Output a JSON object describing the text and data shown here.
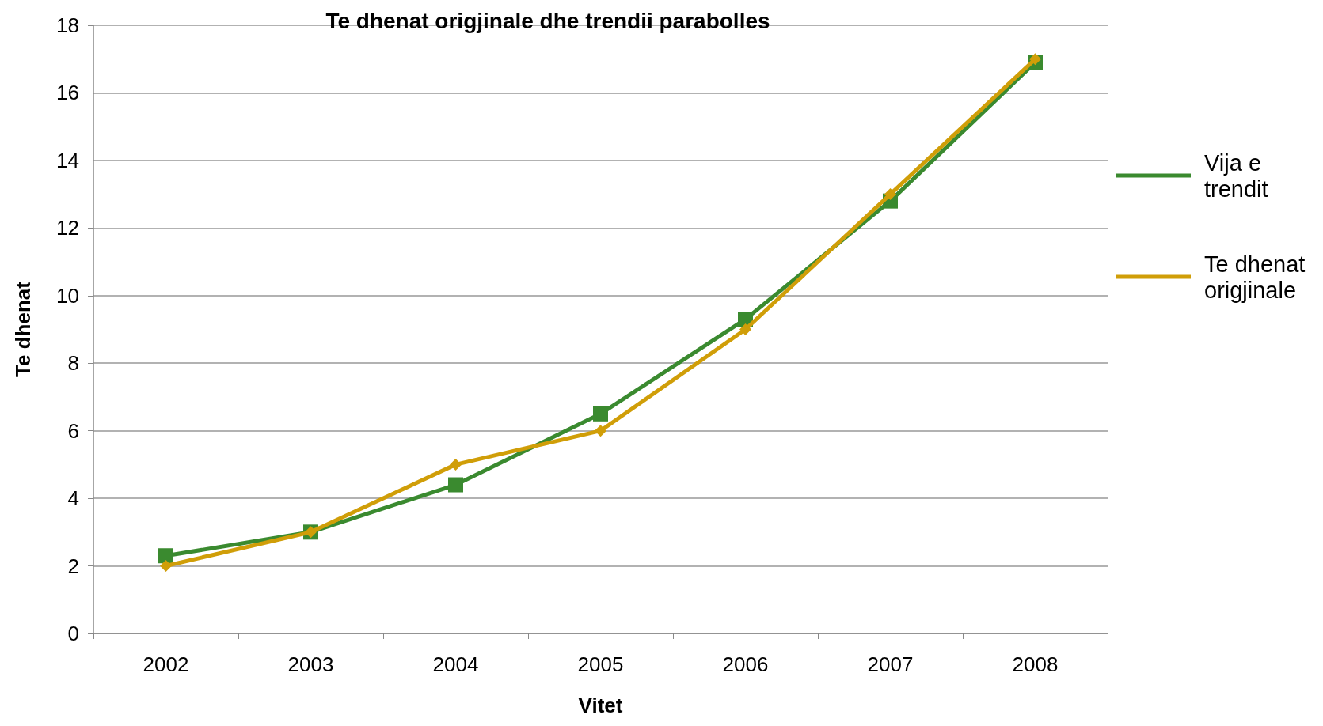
{
  "chart_data": {
    "type": "line",
    "title": "Te dhenat origjinale dhe trendii parabolles",
    "xlabel": "Vitet",
    "ylabel": "Te dhenat",
    "categories": [
      "2002",
      "2003",
      "2004",
      "2005",
      "2006",
      "2007",
      "2008"
    ],
    "series": [
      {
        "name": "Vija e trendit",
        "color": "#3a8a2f",
        "marker": "square",
        "values": [
          2.3,
          3.0,
          4.4,
          6.5,
          9.3,
          12.8,
          16.9
        ]
      },
      {
        "name": "Te dhenat origjinale",
        "color": "#d09e08",
        "marker": "diamond",
        "values": [
          2,
          3,
          5,
          6,
          9,
          13,
          17
        ]
      }
    ],
    "ylim": [
      0,
      18
    ],
    "yticks": [
      0,
      2,
      4,
      6,
      8,
      10,
      12,
      14,
      16,
      18
    ],
    "grid": "y",
    "legend": "right",
    "line_style": "solid"
  }
}
